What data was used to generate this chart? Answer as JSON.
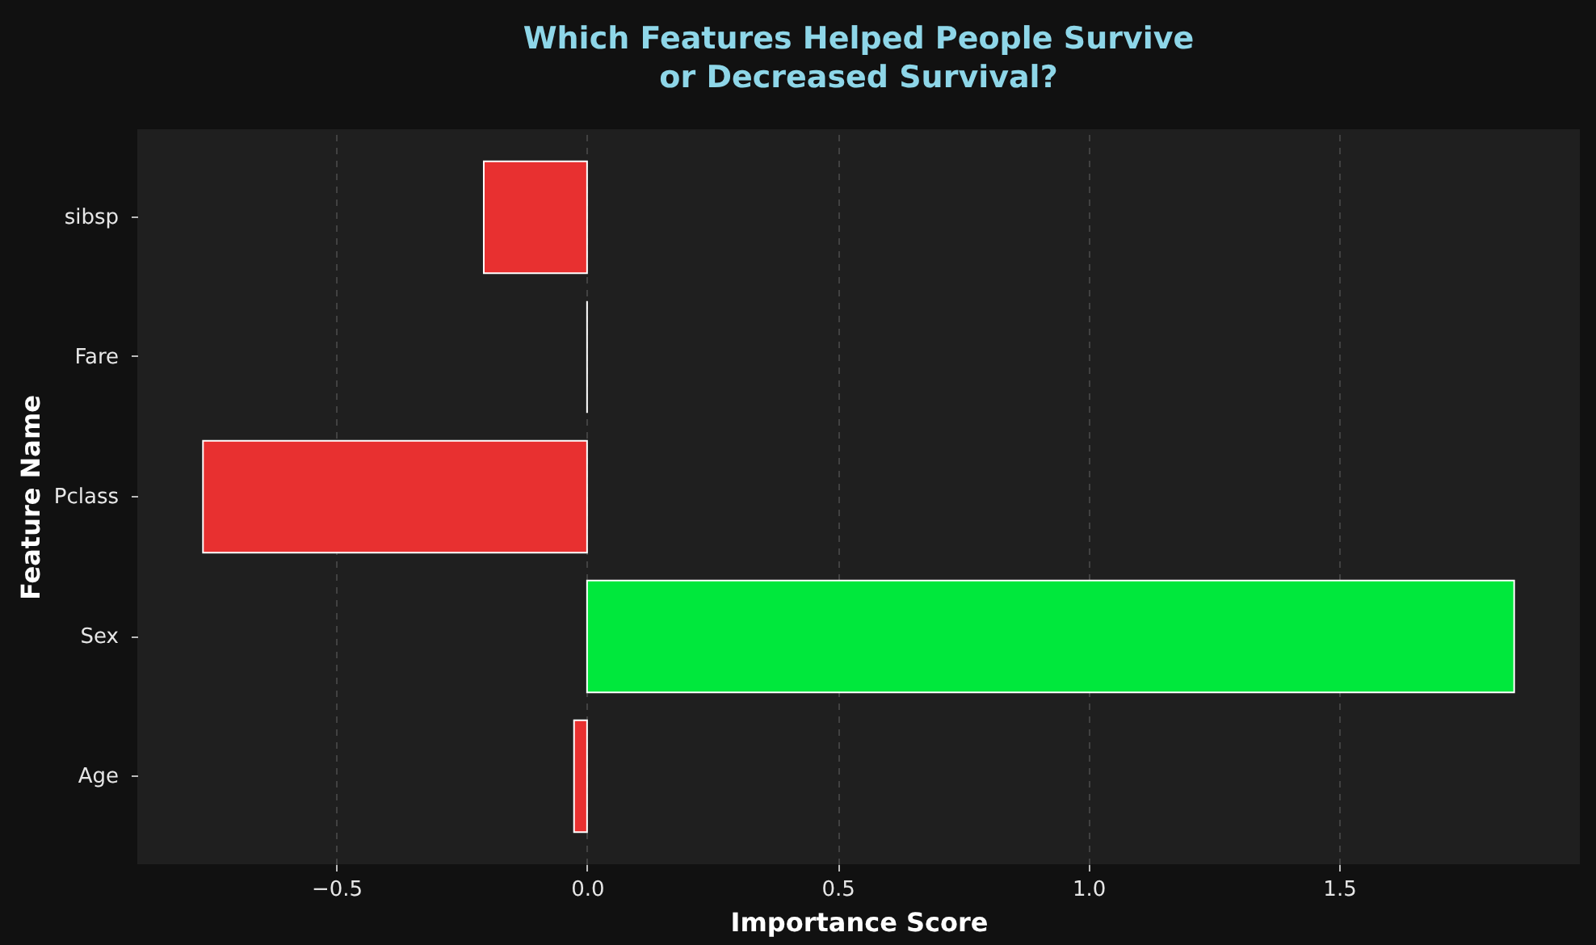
{
  "chart_data": {
    "type": "bar",
    "orientation": "horizontal",
    "title": "Which Features Helped People Survive\nor Decreased Survival?",
    "xlabel": "Importance Score",
    "ylabel": "Feature Name",
    "categories": [
      "sibsp",
      "Fare",
      "Pclass",
      "Sex",
      "Age"
    ],
    "values": [
      -0.206,
      0.0,
      -0.766,
      1.849,
      -0.026
    ],
    "colors": [
      "#e83030",
      "#ffffff",
      "#e83030",
      "#00e83c",
      "#e83030"
    ],
    "xlim": [
      -0.897,
      1.98
    ],
    "xticks": [
      {
        "value": -0.5,
        "label": "−0.5"
      },
      {
        "value": 0,
        "label": "0.0"
      },
      0.5,
      {
        "value": 1,
        "label": "1.0"
      },
      1.5
    ],
    "grid": "x"
  }
}
